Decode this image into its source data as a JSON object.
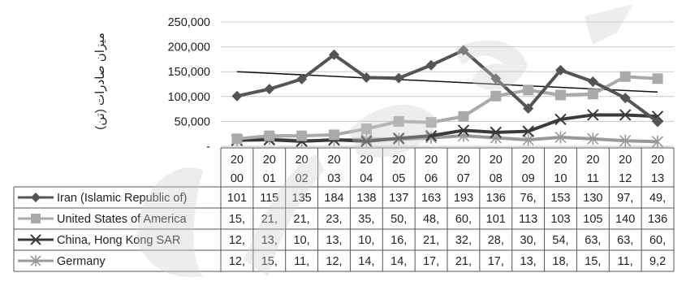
{
  "chart_data": {
    "type": "line",
    "ylabel": "میزان صادرات (تن)",
    "ylim": [
      0,
      250000
    ],
    "y_ticks": [
      "250,000",
      "200,000",
      "150,000",
      "100,000",
      "50,000",
      "-"
    ],
    "y_tick_values": [
      250000,
      200000,
      150000,
      100000,
      50000,
      0
    ],
    "x_tick_lines": [
      [
        "20",
        "00"
      ],
      [
        "20",
        "01"
      ],
      [
        "20",
        "02"
      ],
      [
        "20",
        "03"
      ],
      [
        "20",
        "04"
      ],
      [
        "20",
        "05"
      ],
      [
        "20",
        "06"
      ],
      [
        "20",
        "07"
      ],
      [
        "20",
        "08"
      ],
      [
        "20",
        "09"
      ],
      [
        "20",
        "10"
      ],
      [
        "20",
        "11"
      ],
      [
        "20",
        "12"
      ],
      [
        "20",
        "13"
      ]
    ],
    "x": [
      "2000",
      "2001",
      "2002",
      "2003",
      "2004",
      "2005",
      "2006",
      "2007",
      "2008",
      "2009",
      "2010",
      "2011",
      "2012",
      "2013"
    ],
    "grid": true,
    "legend": "data-table",
    "series": [
      {
        "name": "Iran (Islamic Republic of)",
        "color": "#555555",
        "marker": "diamond",
        "values": [
          101000,
          115000,
          135000,
          184000,
          138000,
          137000,
          163000,
          193000,
          136000,
          76000,
          153000,
          130000,
          97000,
          49000
        ],
        "table_text": [
          "101",
          "115",
          "135",
          "184",
          "138",
          "137",
          "163",
          "193",
          "136",
          "76,",
          "153",
          "130",
          "97,",
          "49,"
        ]
      },
      {
        "name": "United States of America",
        "color": "#aaaaaa",
        "marker": "square",
        "values": [
          15000,
          21000,
          21000,
          23000,
          35000,
          50000,
          48000,
          60000,
          101000,
          113000,
          103000,
          105000,
          140000,
          136000
        ],
        "table_text": [
          "15,",
          "21,",
          "21,",
          "23,",
          "35,",
          "50,",
          "48,",
          "60,",
          "101",
          "113",
          "103",
          "105",
          "140",
          "136"
        ]
      },
      {
        "name": "China, Hong Kong SAR",
        "color": "#3a3a3a",
        "marker": "x",
        "values": [
          12000,
          13000,
          10000,
          13000,
          10000,
          16000,
          21000,
          32000,
          28000,
          30000,
          54000,
          63000,
          63000,
          60000
        ],
        "table_text": [
          "12,",
          "13,",
          "10,",
          "13,",
          "10,",
          "16,",
          "21,",
          "32,",
          "28,",
          "30,",
          "54,",
          "63,",
          "63,",
          "60,"
        ]
      },
      {
        "name": "Germany",
        "color": "#999999",
        "marker": "star",
        "values": [
          12000,
          15000,
          11000,
          12000,
          14000,
          14000,
          17000,
          21000,
          17000,
          13000,
          18000,
          15000,
          11000,
          9200
        ],
        "table_text": [
          "12,",
          "15,",
          "11,",
          "12,",
          "14,",
          "14,",
          "17,",
          "21,",
          "17,",
          "13,",
          "18,",
          "15,",
          "11,",
          "9,2"
        ]
      }
    ],
    "trendline": {
      "series": "Iran (Islamic Republic of)",
      "color": "#111111",
      "start": 150000,
      "end": 109000
    }
  },
  "watermark": {
    "color": "#cccccc"
  }
}
